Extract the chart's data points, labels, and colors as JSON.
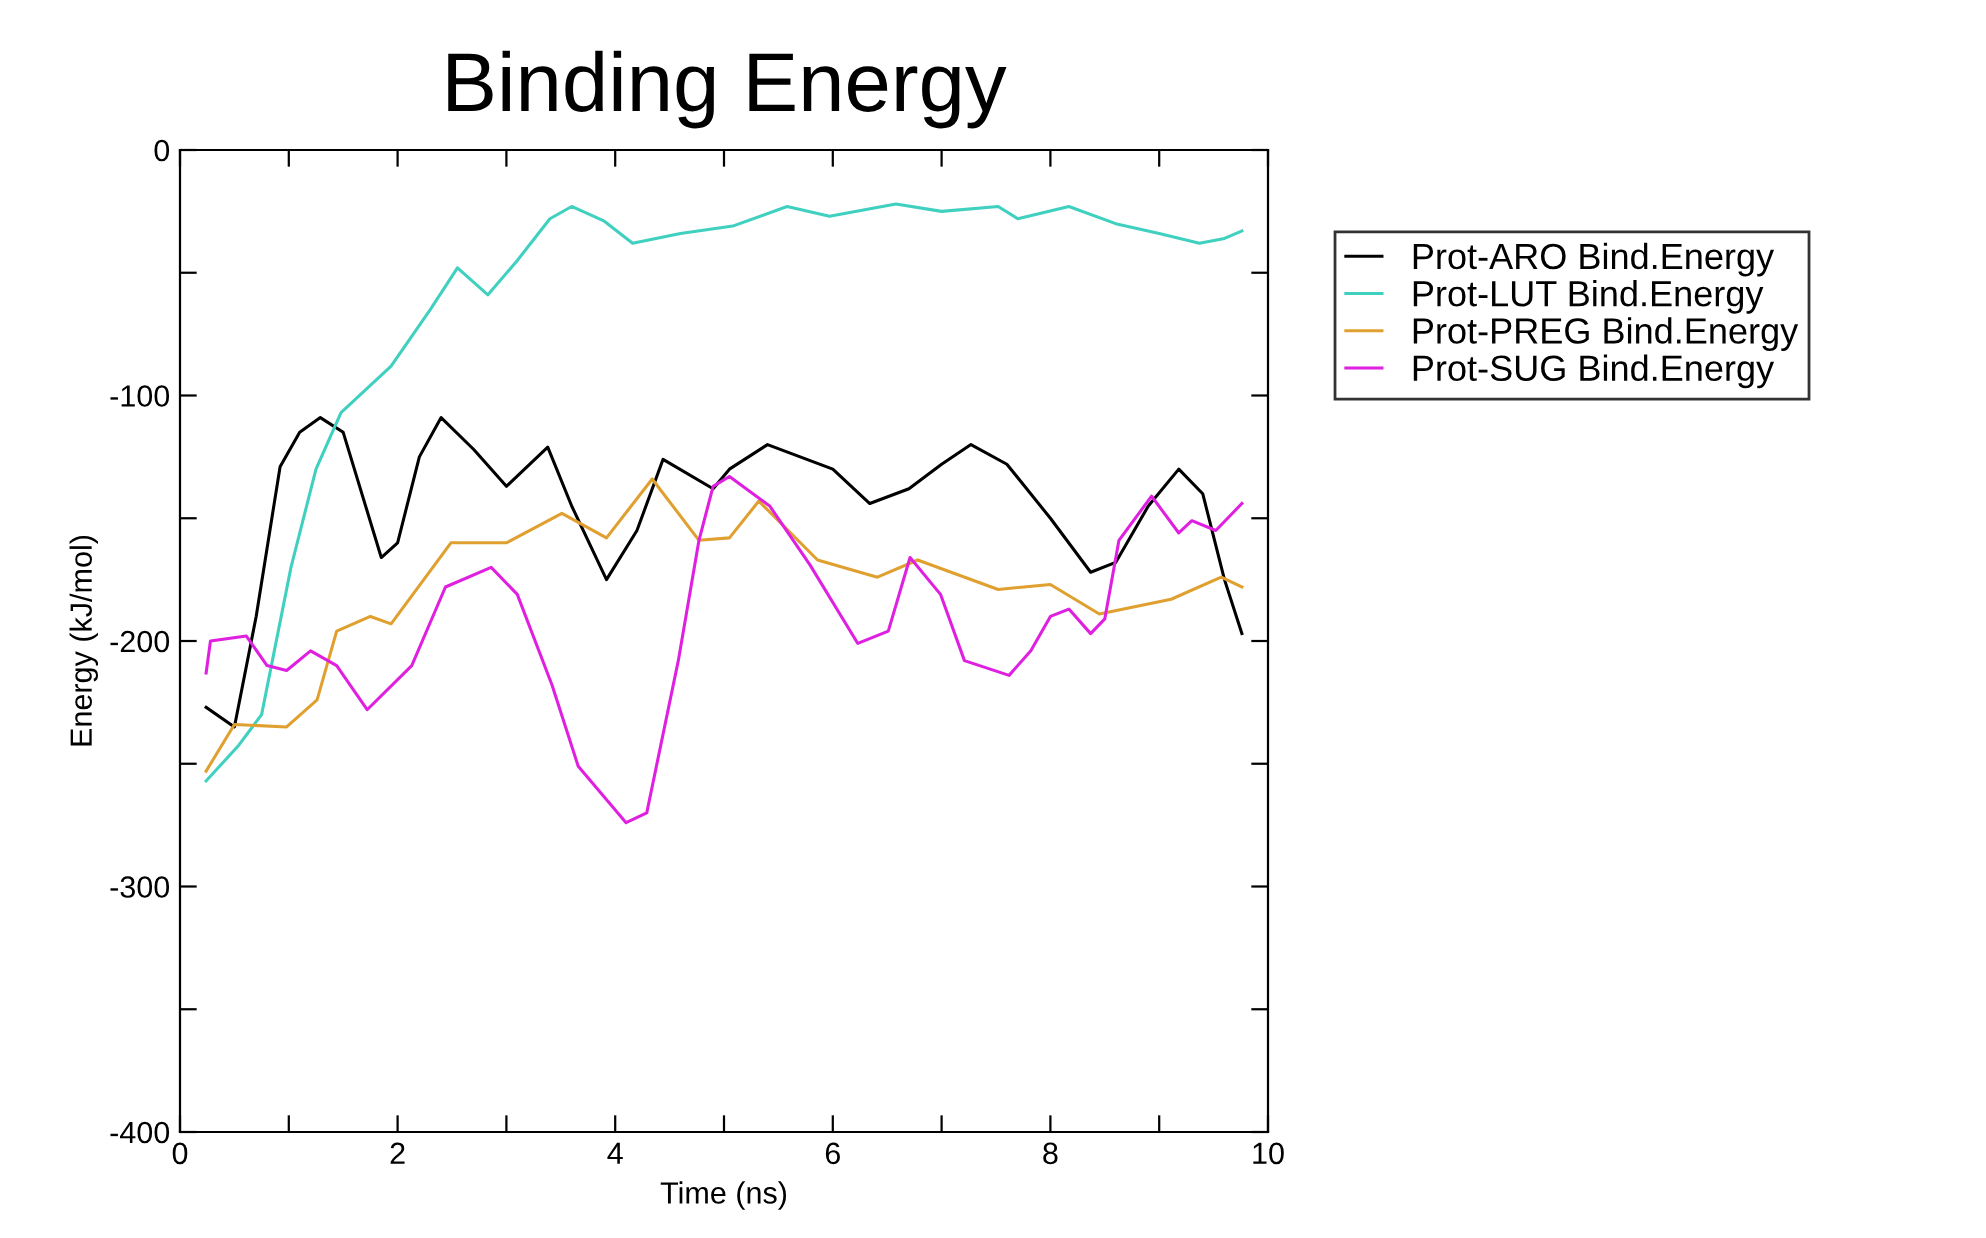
{
  "chart_data": {
    "type": "line",
    "title": "Binding Energy",
    "xlabel": "Time (ns)",
    "ylabel": "Energy (kJ/mol)",
    "xlim": [
      0,
      10
    ],
    "xticks": [
      0,
      {
        "value": 1,
        "label": null
      },
      2,
      {
        "value": 3,
        "label": null
      },
      4,
      {
        "value": 5,
        "label": null
      },
      6,
      {
        "value": 7,
        "label": null
      },
      8,
      {
        "value": 9,
        "label": null
      },
      10
    ],
    "ylim": [
      -400,
      0
    ],
    "yticks": [
      -400,
      {
        "value": -350,
        "label": null
      },
      -300,
      {
        "value": -250,
        "label": null
      },
      -200,
      {
        "value": -150,
        "label": null
      },
      -100,
      {
        "value": -50,
        "label": null
      },
      0
    ],
    "grid": false,
    "legend": "top right",
    "line_style": "solid",
    "marker": "none",
    "series": [
      {
        "name": "Prot-ARO Bind.Energy",
        "color": "#000000",
        "x": [
          0.24,
          0.5,
          0.7,
          0.92,
          1.1,
          1.29,
          1.5,
          1.85,
          2.0,
          2.2,
          2.4,
          2.7,
          3.0,
          3.38,
          3.6,
          3.92,
          4.2,
          4.44,
          4.9,
          5.05,
          5.4,
          5.7,
          6.0,
          6.34,
          6.7,
          7.0,
          7.27,
          7.6,
          8.0,
          8.37,
          8.6,
          8.9,
          9.18,
          9.4,
          9.6,
          9.76
        ],
        "values": [
          -227,
          -235,
          -190,
          -129,
          -115,
          -109,
          -115,
          -166,
          -160,
          -125,
          -109,
          -122,
          -137,
          -121,
          -145,
          -175,
          -155,
          -126,
          -138,
          -130,
          -120,
          -125,
          -130,
          -144,
          -138,
          -128,
          -120,
          -128,
          -150,
          -172,
          -168,
          -145,
          -130,
          -140,
          -175,
          -197
        ]
      },
      {
        "name": "Prot-LUT Bind.Energy",
        "color": "#40d0c0",
        "x": [
          0.24,
          0.53,
          0.75,
          1.02,
          1.25,
          1.48,
          1.94,
          2.3,
          2.55,
          2.83,
          3.1,
          3.4,
          3.6,
          3.9,
          4.16,
          4.6,
          5.08,
          5.58,
          5.97,
          6.58,
          7.0,
          7.52,
          7.7,
          8.17,
          8.6,
          9.0,
          9.37,
          9.6,
          9.76
        ],
        "values": [
          -257,
          -243,
          -230,
          -170,
          -130,
          -107,
          -88,
          -65,
          -48,
          -59,
          -45,
          -28,
          -23,
          -29,
          -38,
          -34,
          -31,
          -23,
          -27,
          -22,
          -25,
          -23,
          -28,
          -23,
          -30,
          -34,
          -38,
          -36,
          -33
        ]
      },
      {
        "name": "Prot-PREG Bind.Energy",
        "color": "#e0a030",
        "x": [
          0.24,
          0.5,
          0.98,
          1.26,
          1.44,
          1.75,
          1.94,
          2.49,
          3.0,
          3.51,
          3.92,
          4.34,
          4.77,
          5.05,
          5.32,
          5.86,
          6.41,
          6.78,
          7.52,
          8.0,
          8.45,
          9.11,
          9.57,
          9.76
        ],
        "values": [
          -253,
          -234,
          -235,
          -224,
          -196,
          -190,
          -193,
          -160,
          -160,
          -148,
          -158,
          -134,
          -159,
          -158,
          -143,
          -167,
          -174,
          -167,
          -179,
          -177,
          -189,
          -183,
          -174,
          -178
        ]
      },
      {
        "name": "Prot-SUG Bind.Energy",
        "color": "#e020e0",
        "x": [
          0.24,
          0.28,
          0.61,
          0.8,
          0.98,
          1.2,
          1.44,
          1.72,
          2.13,
          2.44,
          2.86,
          3.1,
          3.42,
          3.66,
          4.1,
          4.29,
          4.58,
          4.77,
          4.9,
          5.05,
          5.42,
          5.79,
          6.23,
          6.51,
          6.71,
          6.99,
          7.21,
          7.62,
          7.82,
          8.0,
          8.17,
          8.37,
          8.5,
          8.63,
          8.93,
          9.18,
          9.3,
          9.52,
          9.76
        ],
        "values": [
          -213,
          -200,
          -198,
          -210,
          -212,
          -204,
          -210,
          -228,
          -210,
          -178,
          -170,
          -181,
          -218,
          -251,
          -274,
          -270,
          -208,
          -159,
          -137,
          -133,
          -145,
          -169,
          -201,
          -196,
          -166,
          -181,
          -208,
          -214,
          -204,
          -190,
          -187,
          -197,
          -191,
          -159,
          -141,
          -156,
          -151,
          -155,
          -144
        ]
      }
    ]
  }
}
